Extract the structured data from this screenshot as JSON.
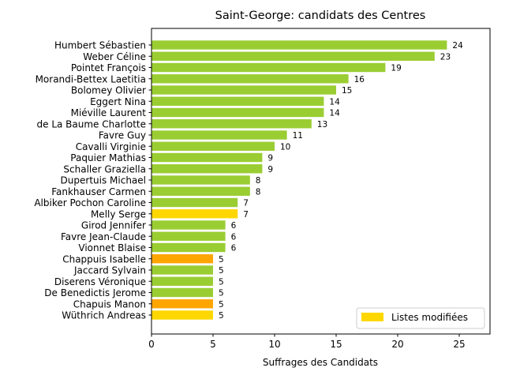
{
  "chart_data": {
    "type": "bar",
    "orientation": "horizontal",
    "title": "Saint-George: candidats des Centres",
    "xlabel": "Suffrages des Candidats",
    "ylabel": "",
    "xlim": [
      0,
      27.5
    ],
    "xticks": [
      0,
      5,
      10,
      15,
      20,
      25
    ],
    "grid": false,
    "legend_position": "bottom-right",
    "categories": [
      "Humbert Sébastien",
      "Weber Céline",
      "Pointet François",
      "Morandi-Bettex Laetitia",
      "Bolomey Olivier",
      "Eggert Nina",
      "Miéville Laurent",
      "de La Baume Charlotte",
      "Favre Guy",
      "Cavalli Virginie",
      "Paquier Mathias",
      "Schaller Graziella",
      "Dupertuis Michael",
      "Fankhauser Carmen",
      "Albiker Pochon Caroline",
      "Melly Serge",
      "Girod Jennifer",
      "Favre Jean-Claude",
      "Vionnet Blaise",
      "Chappuis Isabelle",
      "Jaccard Sylvain",
      "Diserens Véronique",
      "De Benedictis Jerome",
      "Chapuis Manon",
      "Wüthrich Andreas"
    ],
    "values": [
      24,
      23,
      19,
      16,
      15,
      14,
      14,
      13,
      11,
      10,
      9,
      9,
      8,
      8,
      7,
      7,
      6,
      6,
      6,
      5,
      5,
      5,
      5,
      5,
      5
    ],
    "bar_colors": [
      "#9acd32",
      "#9acd32",
      "#9acd32",
      "#9acd32",
      "#9acd32",
      "#9acd32",
      "#9acd32",
      "#9acd32",
      "#9acd32",
      "#9acd32",
      "#9acd32",
      "#9acd32",
      "#9acd32",
      "#9acd32",
      "#9acd32",
      "#ffd700",
      "#9acd32",
      "#9acd32",
      "#9acd32",
      "#ffa500",
      "#9acd32",
      "#9acd32",
      "#9acd32",
      "#ffa500",
      "#ffd700"
    ],
    "legend": [
      {
        "label": "Listes modifiées",
        "color": "#ffd700"
      }
    ]
  }
}
